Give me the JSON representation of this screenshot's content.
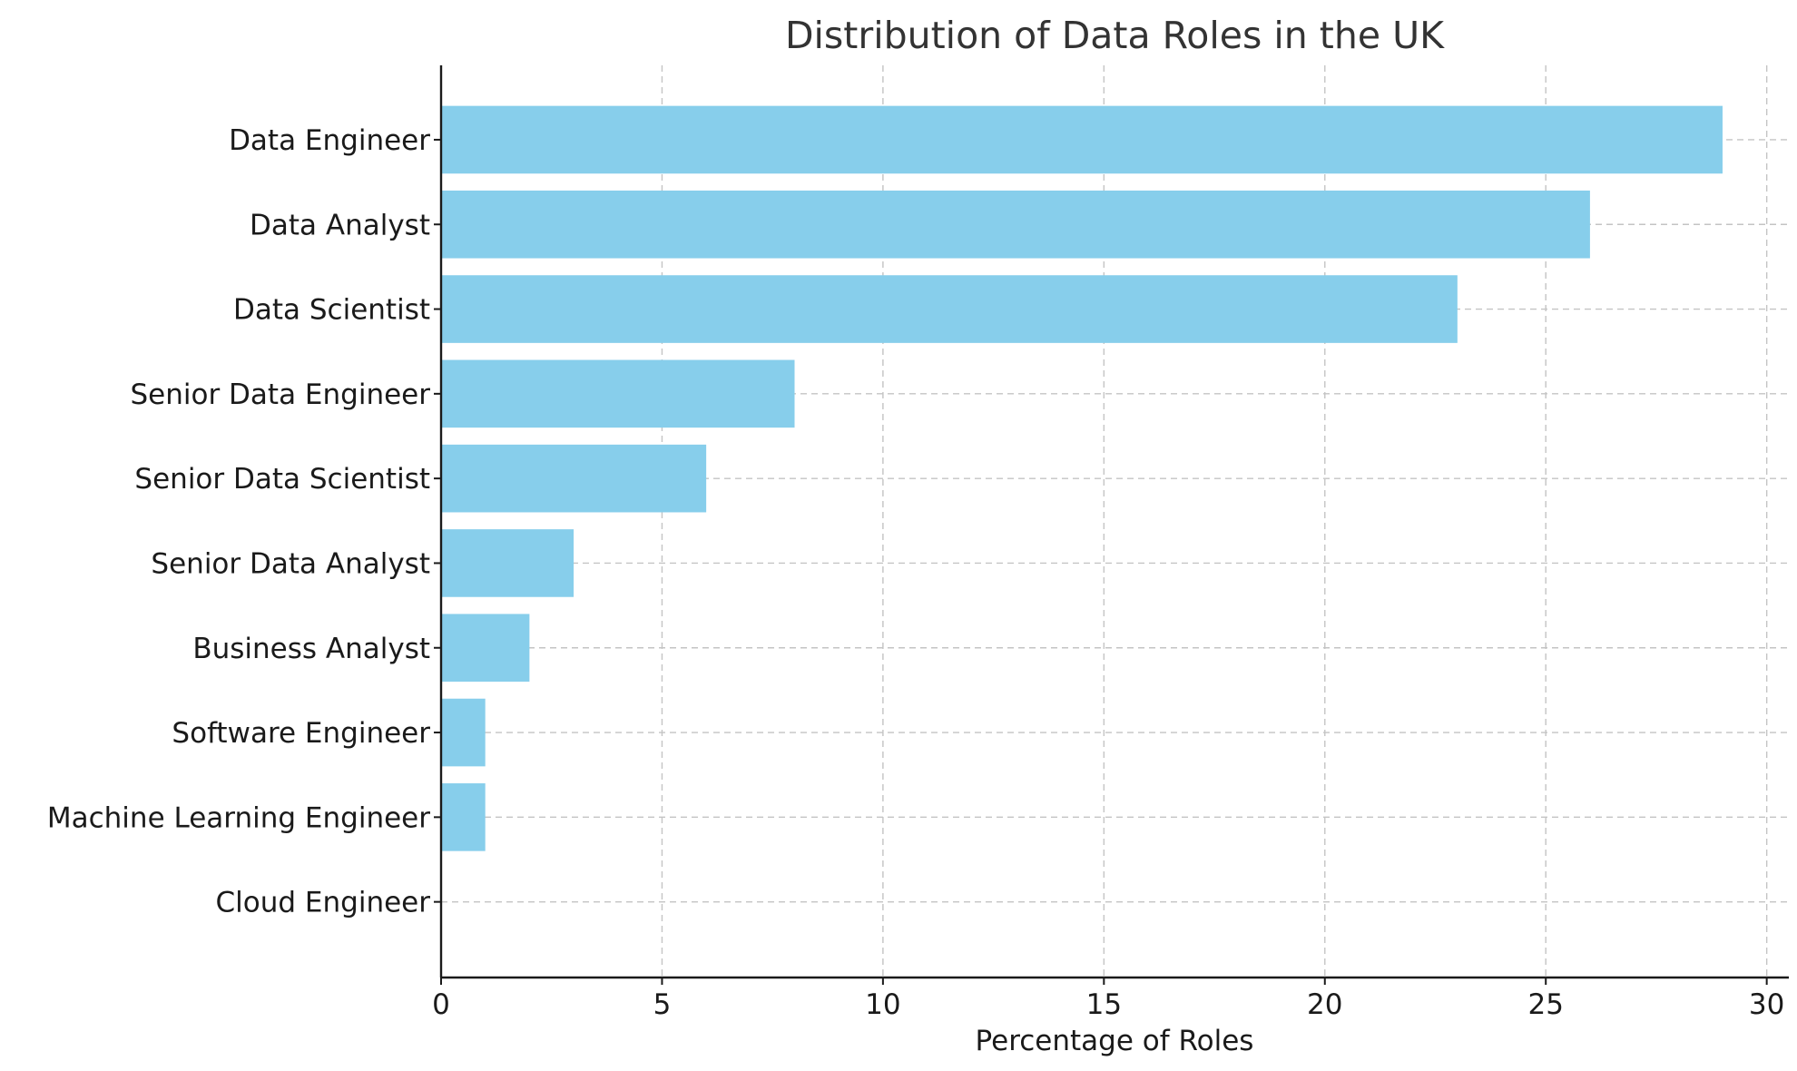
{
  "chart_data": {
    "type": "bar",
    "orientation": "horizontal",
    "title": "Distribution of Data Roles in the UK",
    "xlabel": "Percentage of Roles",
    "ylabel": "",
    "categories": [
      "Data Engineer",
      "Data Analyst",
      "Data Scientist",
      "Senior Data Engineer",
      "Senior Data Scientist",
      "Senior Data Analyst",
      "Business Analyst",
      "Software Engineer",
      "Machine Learning Engineer",
      "Cloud Engineer"
    ],
    "values": [
      29,
      26,
      23,
      8,
      6,
      3,
      2,
      1,
      1,
      0
    ],
    "xlim": [
      0,
      30.5
    ],
    "xticks": [
      0,
      5,
      10,
      15,
      20,
      25,
      30
    ],
    "grid": true,
    "bar_color": "#87ceeb"
  }
}
